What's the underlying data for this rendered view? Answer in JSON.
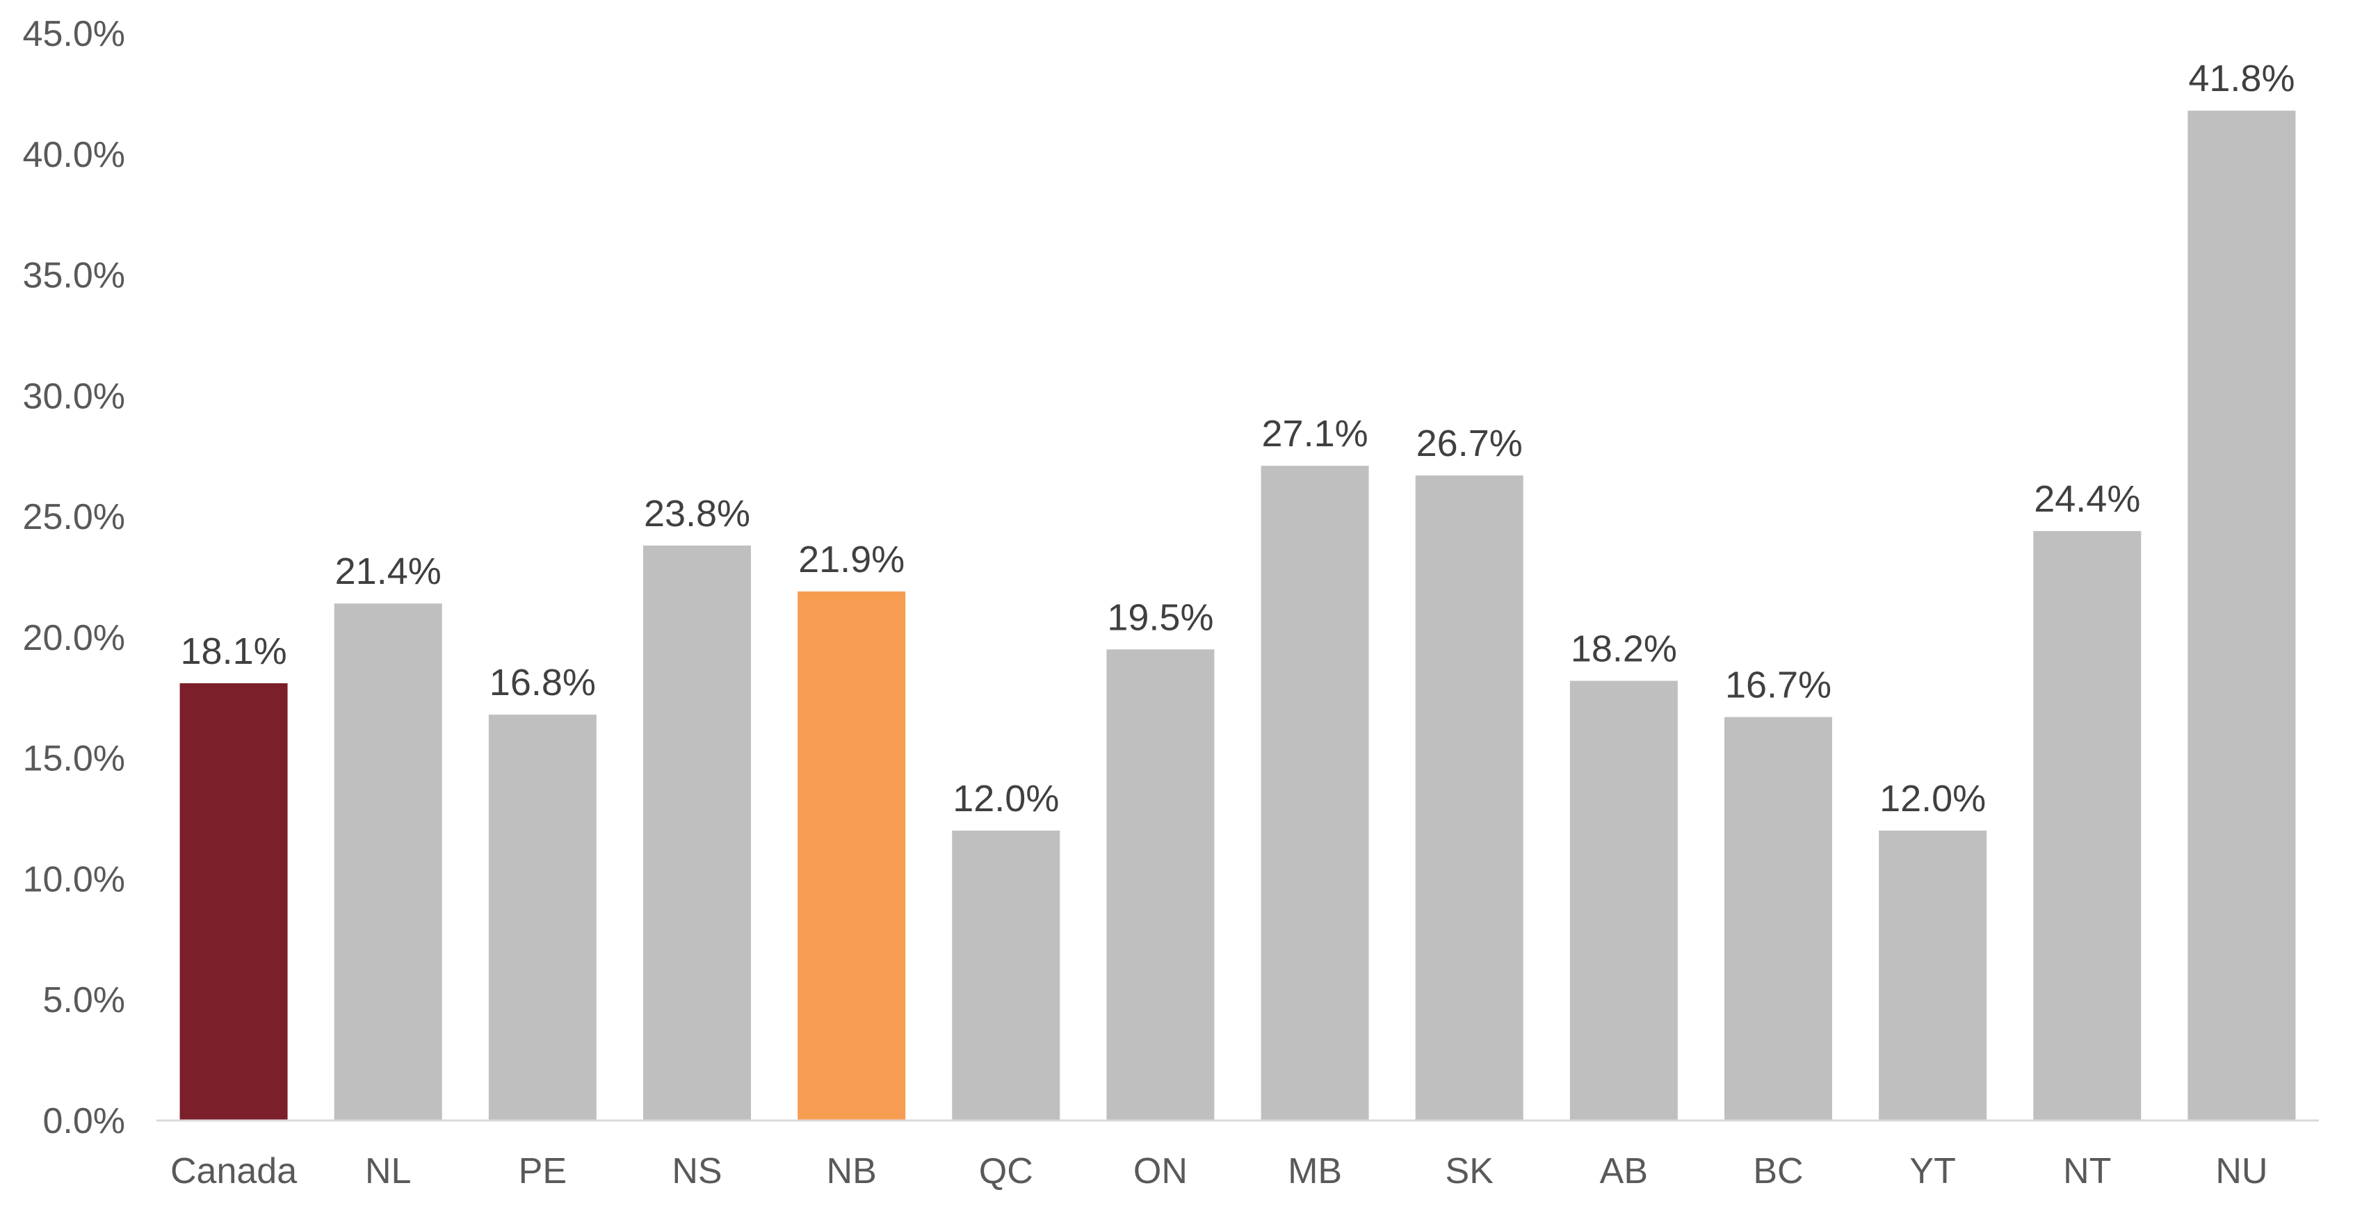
{
  "chart_data": {
    "type": "bar",
    "title": "",
    "xlabel": "",
    "ylabel": "",
    "categories": [
      "Canada",
      "NL",
      "PE",
      "NS",
      "NB",
      "QC",
      "ON",
      "MB",
      "SK",
      "AB",
      "BC",
      "YT",
      "NT",
      "NU"
    ],
    "values": [
      18.1,
      21.4,
      16.8,
      23.8,
      21.9,
      12.0,
      19.5,
      27.1,
      26.7,
      18.2,
      16.7,
      12.0,
      24.4,
      41.8
    ],
    "data_labels": [
      "18.1%",
      "21.4%",
      "16.8%",
      "23.8%",
      "21.9%",
      "12.0%",
      "19.5%",
      "27.1%",
      "26.7%",
      "18.2%",
      "16.7%",
      "12.0%",
      "24.4%",
      "41.8%"
    ],
    "ylim": [
      0,
      45
    ],
    "y_ticks": [
      0,
      5,
      10,
      15,
      20,
      25,
      30,
      35,
      40,
      45
    ],
    "y_tick_labels": [
      "0.0%",
      "5.0%",
      "10.0%",
      "15.0%",
      "20.0%",
      "25.0%",
      "30.0%",
      "35.0%",
      "40.0%",
      "45.0%"
    ],
    "grid": false,
    "legend": "none",
    "colors": {
      "default": "#bfbfbf",
      "Canada": "#7b1f2b",
      "NB": "#f79d52",
      "axis": "#d9d9d9"
    }
  }
}
